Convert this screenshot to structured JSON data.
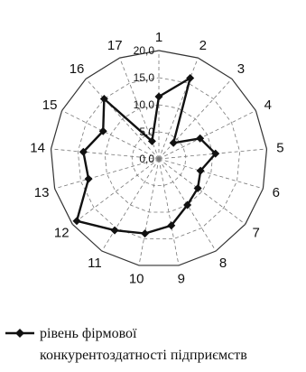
{
  "chart_data": {
    "type": "radar",
    "categories": [
      "1",
      "2",
      "3",
      "4",
      "5",
      "6",
      "7",
      "8",
      "9",
      "10",
      "11",
      "12",
      "13",
      "14",
      "15",
      "16",
      "17"
    ],
    "series": [
      {
        "name": "рівень фірмової конкурентоздатності підприємств",
        "legend_lines": [
          "рівень фірмової",
          "конкурентоздатності підприємств"
        ],
        "values": [
          11.5,
          16.0,
          4.0,
          8.5,
          10.5,
          8.0,
          9.0,
          10.0,
          12.5,
          14.0,
          15.5,
          19.0,
          13.5,
          14.0,
          11.5,
          15.0,
          3.5
        ]
      }
    ],
    "ticks": [
      "0,0",
      "5,0",
      "10,0",
      "15,0",
      "20,0"
    ],
    "range": [
      0,
      20
    ],
    "grid": true,
    "legend_position": "bottom",
    "colors": {
      "series": "#111111",
      "grid": "#777777"
    }
  }
}
